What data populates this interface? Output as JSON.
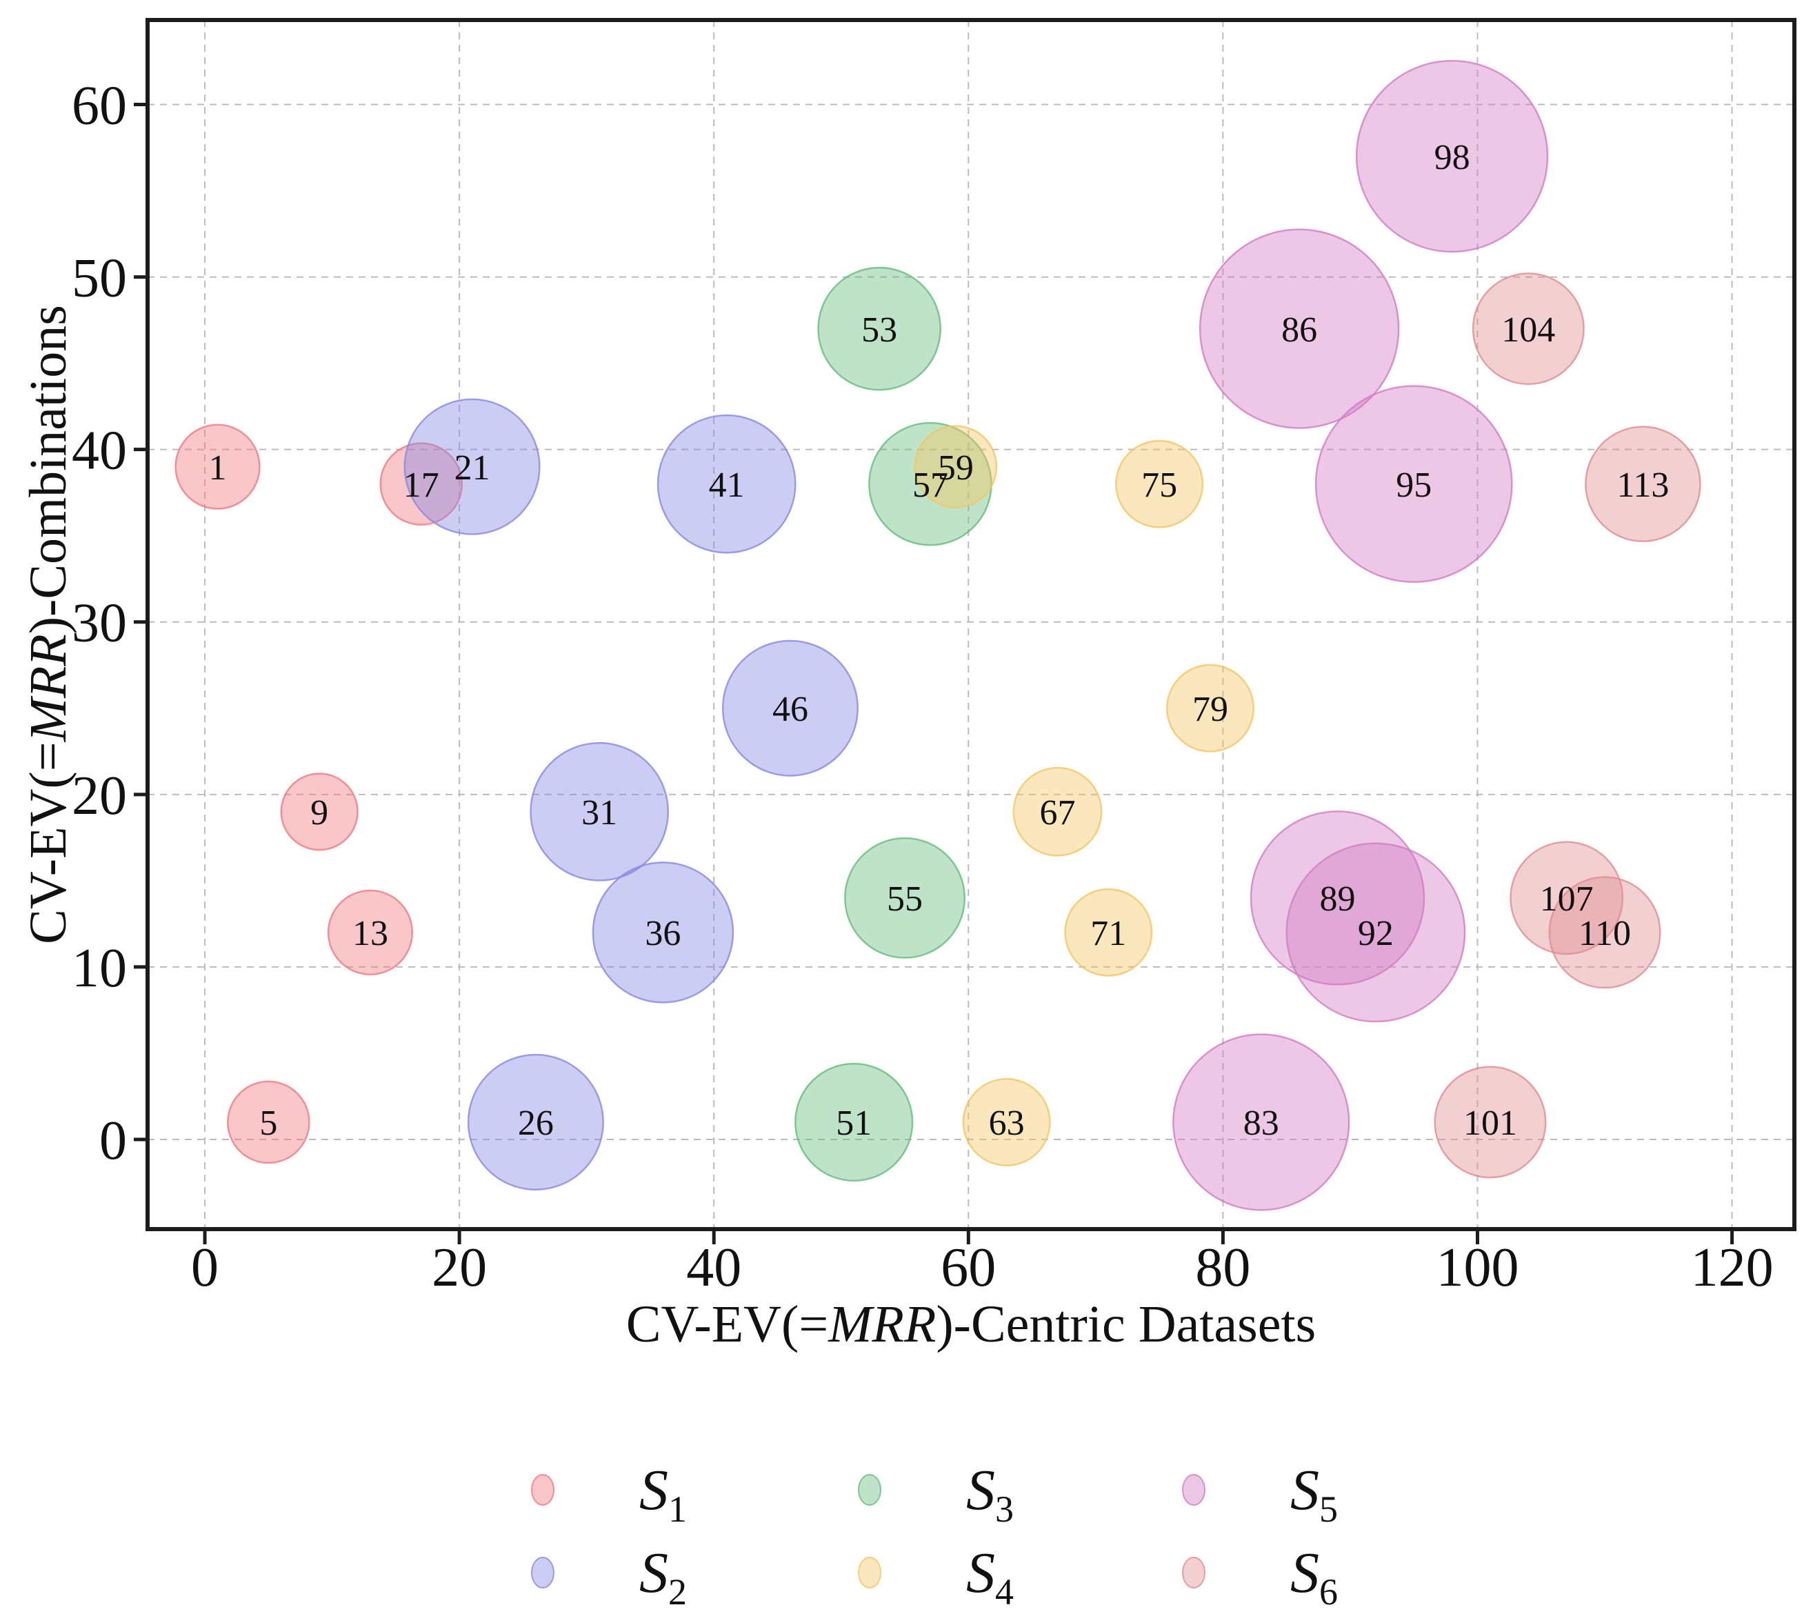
{
  "chart_data": {
    "type": "scatter",
    "subtype": "bubble",
    "title": "",
    "xlabel_parts": [
      {
        "t": "CV-EV(=",
        "italic": false
      },
      {
        "t": "MRR",
        "italic": true
      },
      {
        "t": ")-Centric Datasets",
        "italic": false
      }
    ],
    "ylabel_parts": [
      {
        "t": "CV-EV(=",
        "italic": false
      },
      {
        "t": "MRR",
        "italic": true
      },
      {
        "t": ")-Combinations",
        "italic": false
      }
    ],
    "xlim": [
      -4.5,
      124.9
    ],
    "ylim": [
      -5.2,
      64.9
    ],
    "xticks": [
      0,
      20,
      40,
      60,
      80,
      100,
      120
    ],
    "yticks": [
      0,
      10,
      20,
      30,
      40,
      50,
      60
    ],
    "grid": true,
    "grid_color": "#b4b4b4",
    "axis_color": "#1c1c1c",
    "fill_opacity": 0.42,
    "stroke_opacity": 0.8,
    "series": [
      {
        "name": "S",
        "sub": "1",
        "color": "#f07981",
        "points": [
          {
            "id": "1",
            "x": 1,
            "y": 39,
            "r": 3.3
          },
          {
            "id": "5",
            "x": 5,
            "y": 1,
            "r": 3.2
          },
          {
            "id": "9",
            "x": 9,
            "y": 19,
            "r": 3.0
          },
          {
            "id": "13",
            "x": 13,
            "y": 12,
            "r": 3.3
          },
          {
            "id": "17",
            "x": 17,
            "y": 38,
            "r": 3.2
          }
        ]
      },
      {
        "name": "S",
        "sub": "2",
        "color": "#8888e2",
        "points": [
          {
            "id": "21",
            "x": 21,
            "y": 39,
            "r": 5.3
          },
          {
            "id": "26",
            "x": 26,
            "y": 1,
            "r": 5.3
          },
          {
            "id": "31",
            "x": 31,
            "y": 19,
            "r": 5.4
          },
          {
            "id": "36",
            "x": 36,
            "y": 12,
            "r": 5.5
          },
          {
            "id": "41",
            "x": 41,
            "y": 38,
            "r": 5.4
          },
          {
            "id": "46",
            "x": 46,
            "y": 25,
            "r": 5.3
          }
        ]
      },
      {
        "name": "S",
        "sub": "3",
        "color": "#66bc7c",
        "points": [
          {
            "id": "51",
            "x": 51,
            "y": 1,
            "r": 4.6
          },
          {
            "id": "53",
            "x": 53,
            "y": 47,
            "r": 4.8
          },
          {
            "id": "55",
            "x": 55,
            "y": 14,
            "r": 4.7
          },
          {
            "id": "57",
            "x": 57,
            "y": 38,
            "r": 4.8
          }
        ]
      },
      {
        "name": "S",
        "sub": "4",
        "color": "#f5c662",
        "points": [
          {
            "id": "59",
            "x": 59,
            "y": 39,
            "r": 3.2
          },
          {
            "id": "63",
            "x": 63,
            "y": 1,
            "r": 3.4
          },
          {
            "id": "67",
            "x": 67,
            "y": 19,
            "r": 3.45
          },
          {
            "id": "71",
            "x": 71,
            "y": 12,
            "r": 3.4
          },
          {
            "id": "75",
            "x": 75,
            "y": 38,
            "r": 3.4
          },
          {
            "id": "79",
            "x": 79,
            "y": 25,
            "r": 3.4
          }
        ]
      },
      {
        "name": "S",
        "sub": "5",
        "color": "#d27cc4",
        "points": [
          {
            "id": "83",
            "x": 83,
            "y": 1,
            "r": 6.9
          },
          {
            "id": "86",
            "x": 86,
            "y": 47,
            "r": 7.8
          },
          {
            "id": "89",
            "x": 89,
            "y": 14,
            "r": 6.8
          },
          {
            "id": "92",
            "x": 92,
            "y": 12,
            "r": 7.0
          },
          {
            "id": "95",
            "x": 95,
            "y": 38,
            "r": 7.7
          },
          {
            "id": "98",
            "x": 98,
            "y": 57,
            "r": 7.5
          }
        ]
      },
      {
        "name": "S",
        "sub": "6",
        "color": "#e08c92",
        "points": [
          {
            "id": "101",
            "x": 101,
            "y": 1,
            "r": 4.35
          },
          {
            "id": "104",
            "x": 104,
            "y": 47,
            "r": 4.35
          },
          {
            "id": "107",
            "x": 107,
            "y": 14,
            "r": 4.4
          },
          {
            "id": "110",
            "x": 110,
            "y": 12,
            "r": 4.35
          },
          {
            "id": "113",
            "x": 113,
            "y": 38,
            "r": 4.5
          }
        ]
      }
    ],
    "legend": {
      "columns": [
        [
          0,
          1
        ],
        [
          2,
          3
        ],
        [
          4,
          5
        ]
      ],
      "position": "below-center"
    }
  }
}
